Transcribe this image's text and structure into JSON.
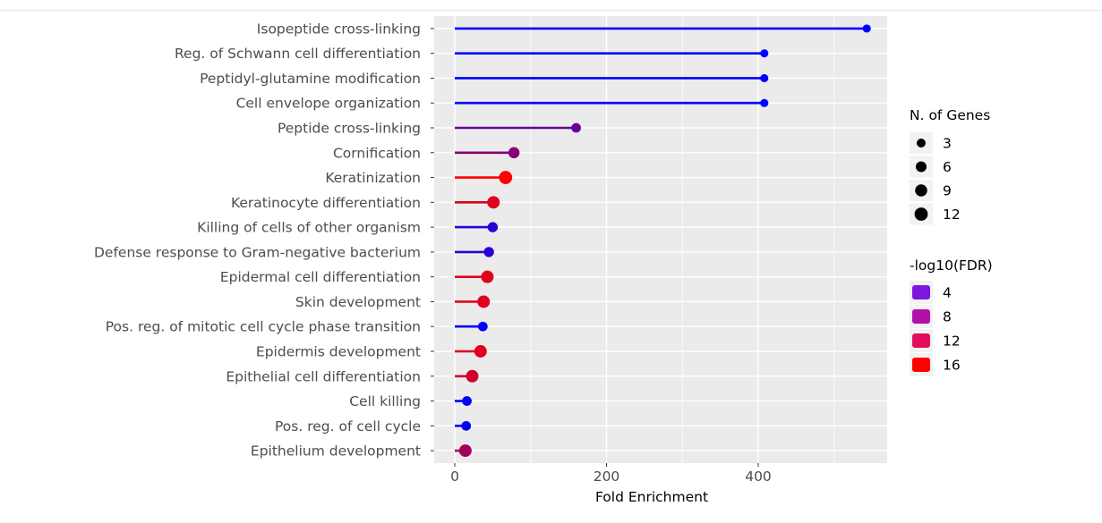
{
  "chart_data": {
    "type": "lollipop",
    "xlabel": "Fold Enrichment",
    "xlim": [
      -35,
      570
    ],
    "x_ticks": [
      0,
      200,
      400
    ],
    "categories": [
      "Isopeptide cross-linking",
      "Reg. of Schwann cell differentiation",
      "Peptidyl-glutamine modification",
      "Cell envelope organization",
      "Peptide cross-linking",
      "Cornification",
      "Keratinization",
      "Keratinocyte differentiation",
      "Killing of cells of other organism",
      "Defense response to Gram-negative bacterium",
      "Epidermal cell differentiation",
      "Skin development",
      "Pos. reg. of mitotic cell cycle phase transition",
      "Epidermis development",
      "Epithelial cell differentiation",
      "Cell killing",
      "Pos. reg. of cell cycle",
      "Epithelium development"
    ],
    "fold_enrichment": [
      543,
      408,
      408,
      408,
      160,
      78,
      67,
      51,
      50,
      45,
      43,
      38,
      37,
      34,
      23,
      16,
      15,
      14
    ],
    "n_genes": [
      2,
      2,
      2,
      2,
      4,
      7,
      12,
      10,
      5,
      5,
      10,
      10,
      4,
      10,
      10,
      4,
      4,
      10
    ],
    "neg_log10_fdr": [
      1.8,
      1.8,
      1.8,
      1.8,
      7.5,
      9.5,
      16.2,
      14.5,
      4.2,
      4.2,
      14.5,
      14.5,
      2.2,
      14.5,
      13.5,
      2.0,
      2.2,
      11.0
    ],
    "size_legend": {
      "title": "N. of Genes",
      "values": [
        3,
        6,
        9,
        12
      ]
    },
    "color_legend": {
      "title": "-log10(FDR)",
      "values": [
        4,
        8,
        12,
        16
      ],
      "colors": [
        "#7B17E0",
        "#B40FA8",
        "#E00F5E",
        "#FF0000"
      ]
    },
    "low_color": "#0000FF",
    "high_color": "#FF0000",
    "panel_bg": "#EBEBEB",
    "grid_color": "#FFFFFF"
  }
}
